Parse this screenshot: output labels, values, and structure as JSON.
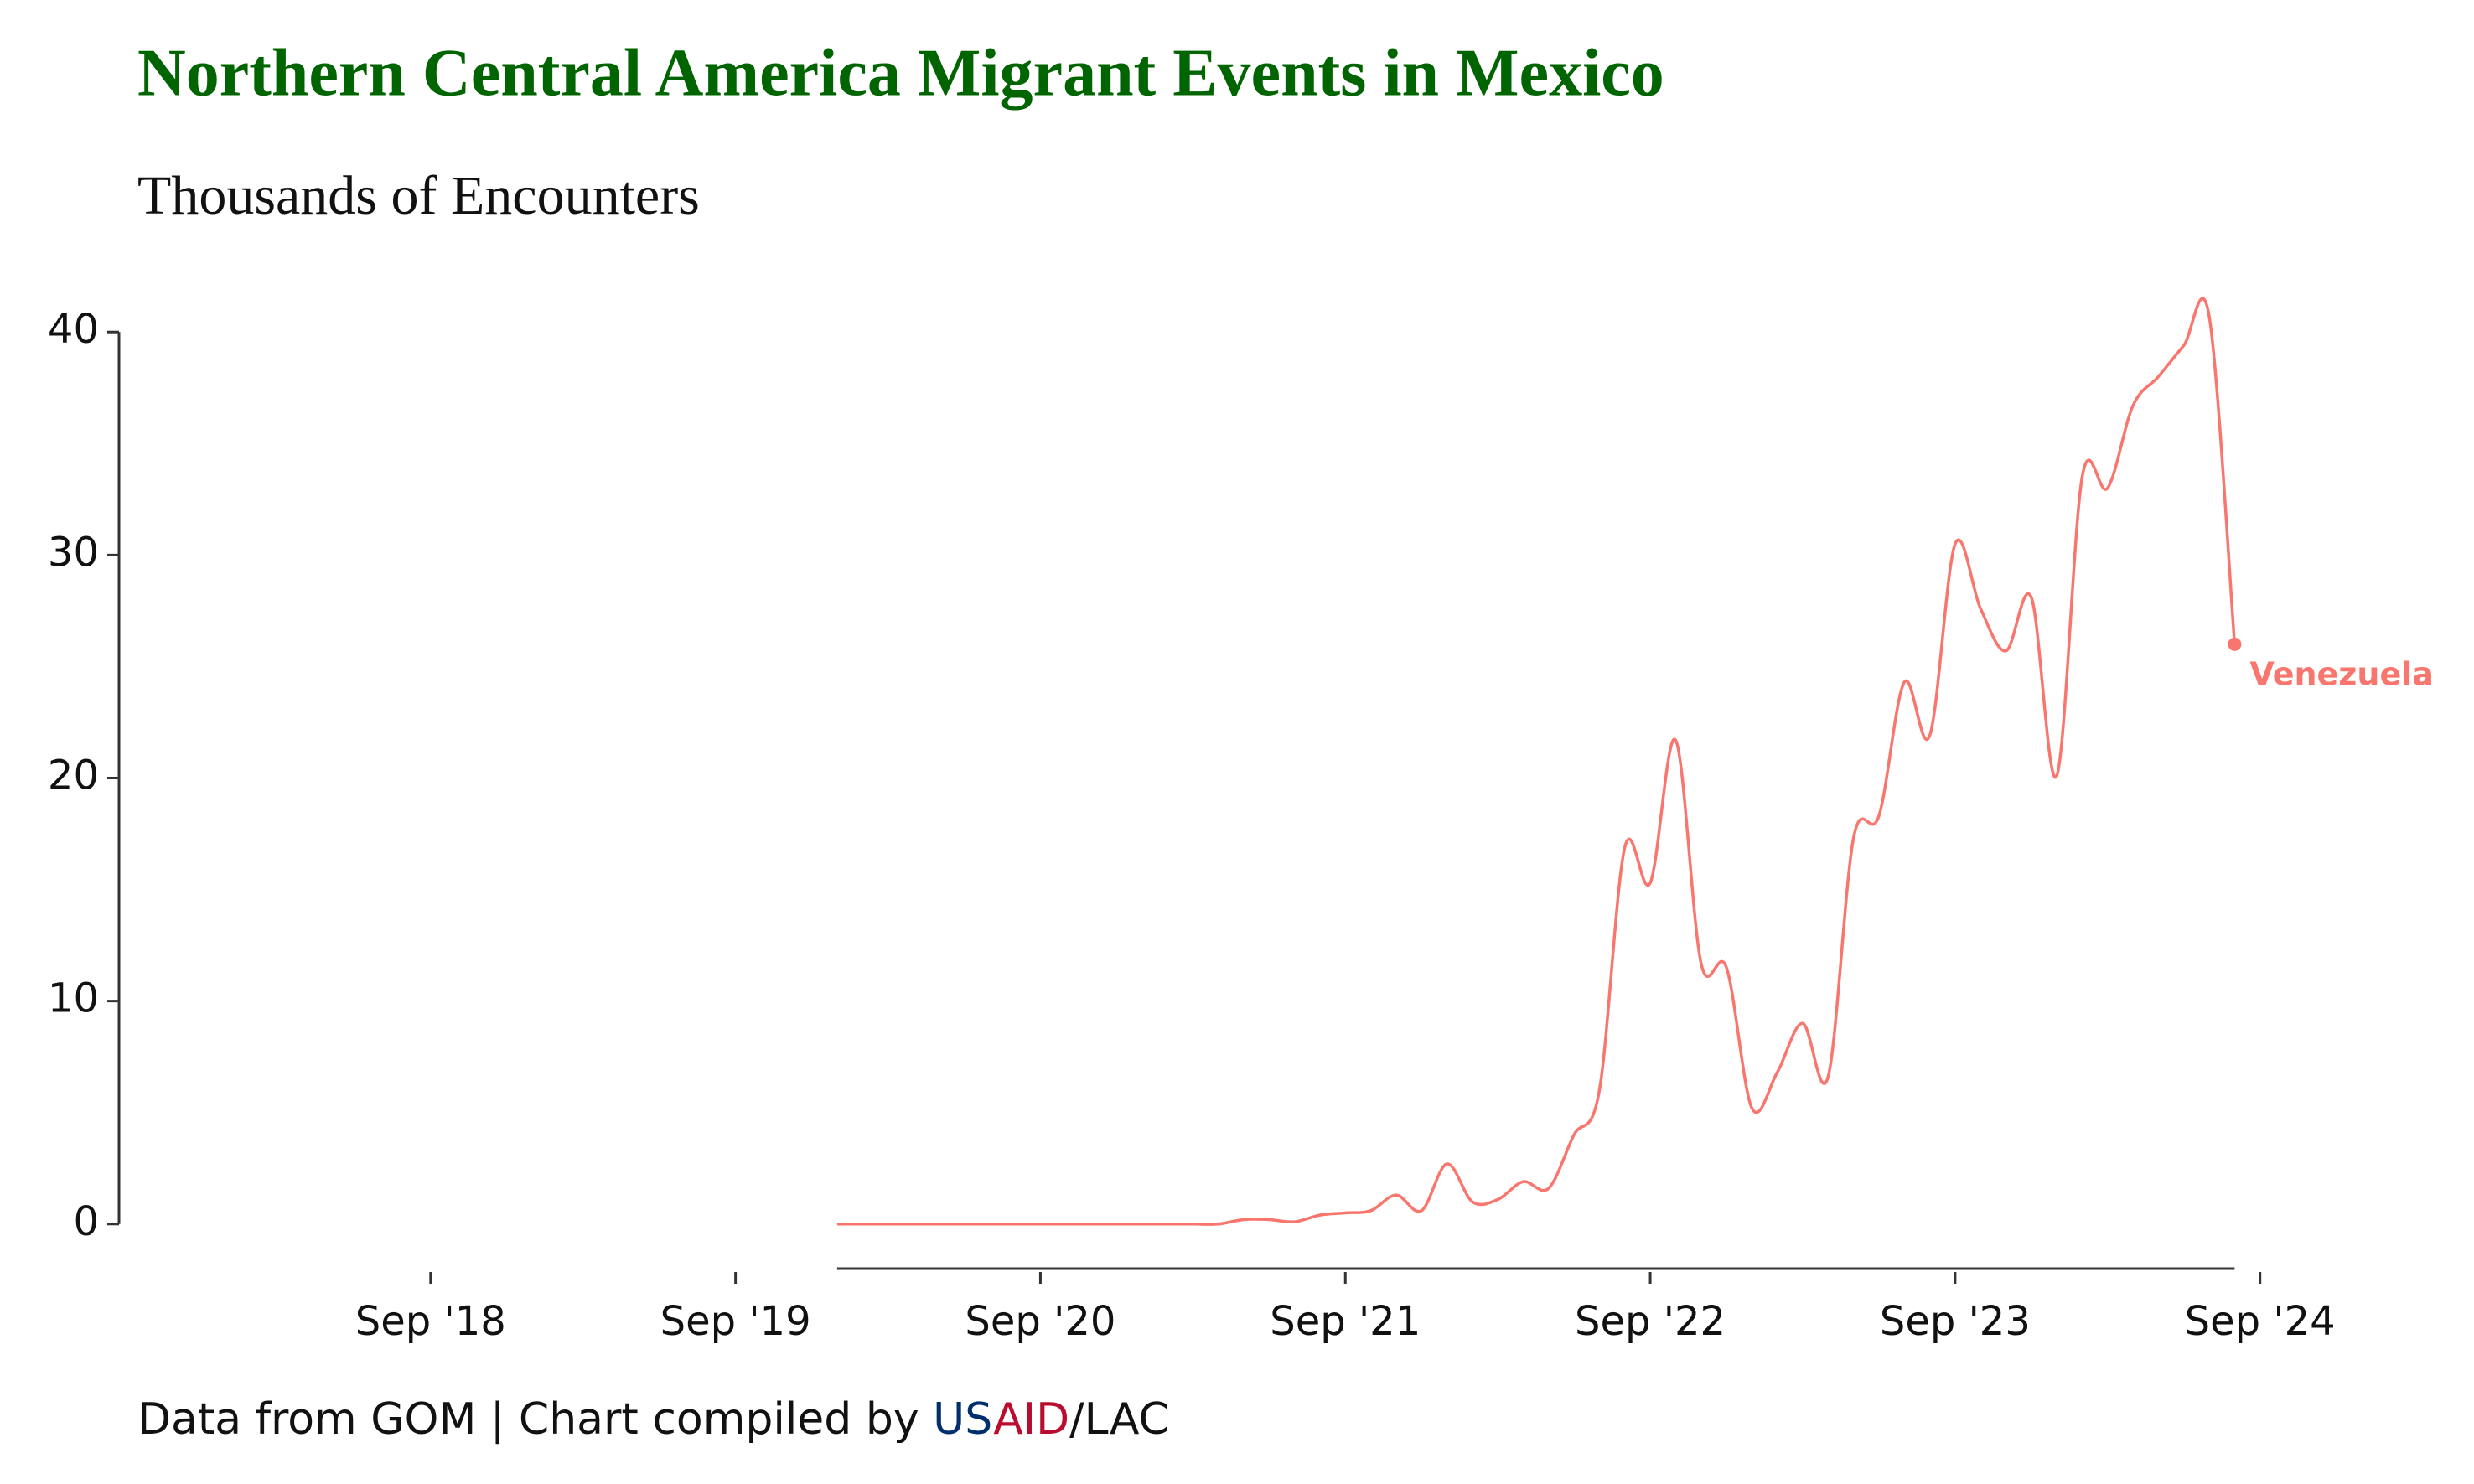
{
  "chart_data": {
    "type": "line",
    "title": "Northern Central America Migrant Events in Mexico",
    "subtitle": "Thousands of Encounters",
    "caption": {
      "prefix": "Data from GOM | Chart compiled by ",
      "us": "US",
      "aid": "AID",
      "suffix": "/LAC"
    },
    "x": [
      "2020-01",
      "2020-02",
      "2020-03",
      "2020-04",
      "2020-05",
      "2020-06",
      "2020-07",
      "2020-08",
      "2020-09",
      "2020-10",
      "2020-11",
      "2020-12",
      "2021-01",
      "2021-02",
      "2021-03",
      "2021-04",
      "2021-05",
      "2021-06",
      "2021-07",
      "2021-08",
      "2021-09",
      "2021-10",
      "2021-11",
      "2021-12",
      "2022-01",
      "2022-02",
      "2022-03",
      "2022-04",
      "2022-05",
      "2022-06",
      "2022-07",
      "2022-08",
      "2022-09",
      "2022-10",
      "2022-11",
      "2022-12",
      "2023-01",
      "2023-02",
      "2023-03",
      "2023-04",
      "2023-05",
      "2023-06",
      "2023-07",
      "2023-08",
      "2023-09",
      "2023-10",
      "2023-11",
      "2023-12",
      "2024-01",
      "2024-02",
      "2024-03",
      "2024-04",
      "2024-05",
      "2024-06",
      "2024-07",
      "2024-08"
    ],
    "series": [
      {
        "name": "Venezuela",
        "color": "#f8766d",
        "values": [
          0,
          0,
          0,
          0,
          0,
          0,
          0,
          0,
          0,
          0,
          0,
          0,
          0,
          0,
          0,
          0,
          0.2,
          0.2,
          0.1,
          0.4,
          0.5,
          0.6,
          1.3,
          0.6,
          2.7,
          1.0,
          1.1,
          1.9,
          1.6,
          4.0,
          6.0,
          16.9,
          15.3,
          21.7,
          11.7,
          11.5,
          5.2,
          6.8,
          9.0,
          6.6,
          17.3,
          18.3,
          24.3,
          21.9,
          30.5,
          27.6,
          25.7,
          28.1,
          20.1,
          33.5,
          33.0,
          36.7,
          38.0,
          39.4,
          40.7,
          26.0
        ]
      }
    ],
    "xlim": [
      "2017-09",
      "2024-10"
    ],
    "xticks": [
      {
        "value": "2018-09",
        "label": "Sep '18"
      },
      {
        "value": "2019-09",
        "label": "Sep '19"
      },
      {
        "value": "2020-09",
        "label": "Sep '20"
      },
      {
        "value": "2021-09",
        "label": "Sep '21"
      },
      {
        "value": "2022-09",
        "label": "Sep '22"
      },
      {
        "value": "2023-09",
        "label": "Sep '23"
      },
      {
        "value": "2024-09",
        "label": "Sep '24"
      }
    ],
    "ylim": [
      -2,
      42
    ],
    "yticks": [
      0,
      10,
      20,
      30,
      40
    ],
    "grid": false
  }
}
